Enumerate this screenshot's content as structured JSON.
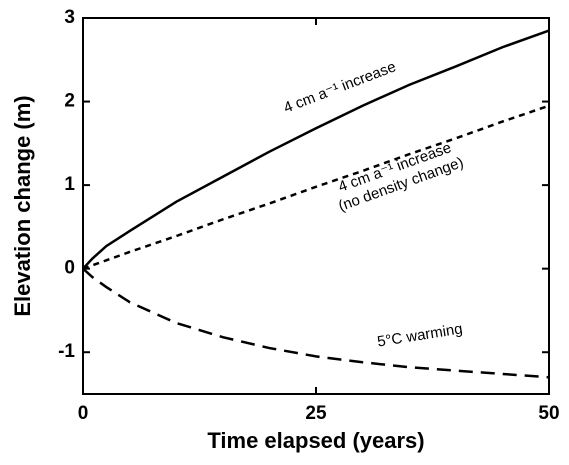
{
  "chart_data": {
    "type": "line",
    "x_label": "Time elapsed (years)",
    "y_label": "Elevation change (m)",
    "x": [
      0,
      1,
      2.5,
      5,
      10,
      15,
      20,
      25,
      30,
      35,
      40,
      45,
      50
    ],
    "series": [
      {
        "color": "#000000",
        "dash": "solid",
        "values": [
          0,
          0.12,
          0.27,
          0.45,
          0.8,
          1.1,
          1.4,
          1.68,
          1.95,
          2.2,
          2.42,
          2.65,
          2.85
        ]
      },
      {
        "color": "#000000",
        "dash": "short",
        "values": [
          0,
          0.04,
          0.1,
          0.2,
          0.39,
          0.59,
          0.78,
          0.98,
          1.17,
          1.37,
          1.56,
          1.76,
          1.95
        ]
      },
      {
        "color": "#000000",
        "dash": "long",
        "values": [
          0,
          -0.1,
          -0.22,
          -0.4,
          -0.65,
          -0.82,
          -0.95,
          -1.05,
          -1.12,
          -1.18,
          -1.22,
          -1.26,
          -1.3
        ]
      }
    ],
    "annotations": [
      {
        "lines": [
          "4 cm a⁻¹ increase"
        ]
      },
      {
        "lines": [
          "4 cm a⁻¹ increase",
          "(no density change)"
        ]
      },
      {
        "lines": [
          "5°C warming"
        ]
      }
    ],
    "xlim": [
      0,
      50
    ],
    "xticks": [
      0,
      25,
      50
    ],
    "ylim": [
      -1.5,
      3
    ],
    "yticks": [
      -1,
      0,
      1,
      2,
      3
    ]
  }
}
